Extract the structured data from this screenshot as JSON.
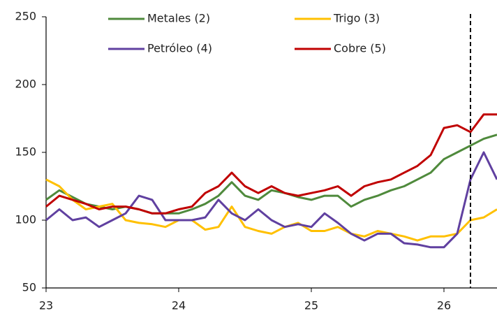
{
  "chart_data": {
    "type": "line",
    "x": [
      23.0,
      23.1,
      23.2,
      23.3,
      23.4,
      23.5,
      23.6,
      23.7,
      23.8,
      23.9,
      24.0,
      24.1,
      24.2,
      24.3,
      24.4,
      24.5,
      24.6,
      24.7,
      24.8,
      24.9,
      25.0,
      25.1,
      25.2,
      25.3,
      25.4,
      25.5,
      25.6,
      25.7,
      25.8,
      25.9,
      26.0,
      26.1,
      26.2,
      26.3,
      26.4
    ],
    "series": [
      {
        "name": "Metales (2)",
        "color": "#4f8a3c",
        "values": [
          115,
          122,
          117,
          112,
          110,
          108,
          110,
          108,
          105,
          105,
          105,
          108,
          112,
          118,
          128,
          118,
          115,
          122,
          120,
          117,
          115,
          118,
          118,
          110,
          115,
          118,
          122,
          125,
          130,
          135,
          145,
          150,
          155,
          160,
          163
        ]
      },
      {
        "name": "Trigo (3)",
        "color": "#ffc000",
        "values": [
          130,
          125,
          115,
          108,
          110,
          112,
          100,
          98,
          97,
          95,
          100,
          100,
          93,
          95,
          110,
          95,
          92,
          90,
          95,
          98,
          92,
          92,
          95,
          90,
          88,
          92,
          90,
          88,
          85,
          88,
          88,
          90,
          100,
          102,
          108
        ]
      },
      {
        "name": "Petróleo (4)",
        "color": "#6040a0",
        "values": [
          100,
          108,
          100,
          102,
          95,
          100,
          105,
          118,
          115,
          100,
          100,
          100,
          102,
          115,
          105,
          100,
          108,
          100,
          95,
          97,
          95,
          105,
          98,
          90,
          85,
          90,
          90,
          83,
          82,
          80,
          80,
          90,
          130,
          150,
          130
        ]
      },
      {
        "name": "Cobre (5)",
        "color": "#c00000",
        "values": [
          110,
          118,
          115,
          112,
          108,
          110,
          110,
          108,
          105,
          105,
          108,
          110,
          120,
          125,
          135,
          125,
          120,
          125,
          120,
          118,
          120,
          122,
          125,
          118,
          125,
          128,
          130,
          135,
          140,
          148,
          168,
          170,
          165,
          178,
          178
        ]
      }
    ],
    "xlim": [
      23,
      26.4
    ],
    "xticks": [
      23,
      24,
      25,
      26
    ],
    "ylim": [
      50,
      250
    ],
    "yticks": [
      50,
      100,
      150,
      200,
      250
    ],
    "vline": 26.2,
    "grid": false,
    "legend": "top"
  }
}
